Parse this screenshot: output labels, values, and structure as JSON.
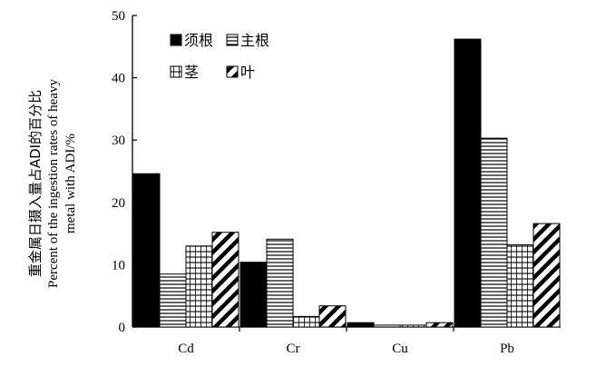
{
  "chart_data": {
    "type": "bar",
    "categories": [
      "Cd",
      "Cr",
      "Cu",
      "Pb"
    ],
    "series": [
      {
        "name": "须根",
        "values": [
          24.6,
          10.4,
          0.7,
          46.2
        ],
        "pattern": "solid-black"
      },
      {
        "name": "主根",
        "values": [
          8.5,
          14.1,
          0.3,
          30.3
        ],
        "pattern": "horizontal-lines"
      },
      {
        "name": "茎",
        "values": [
          13.0,
          1.7,
          0.3,
          13.2
        ],
        "pattern": "grid"
      },
      {
        "name": "叶",
        "values": [
          15.2,
          3.4,
          0.7,
          16.6
        ],
        "pattern": "diagonal-stripes"
      }
    ],
    "ylim": [
      0,
      50
    ],
    "yticks": [
      "0",
      "10",
      "20",
      "30",
      "40",
      "50"
    ],
    "ylabel": {
      "line1": "重金属日摄入量占ADI的百分比",
      "line2": "Percent of the ingestion rates of heavy",
      "line3": "metal with ADI/%"
    },
    "legend_placement": "top-left",
    "grid": false
  }
}
